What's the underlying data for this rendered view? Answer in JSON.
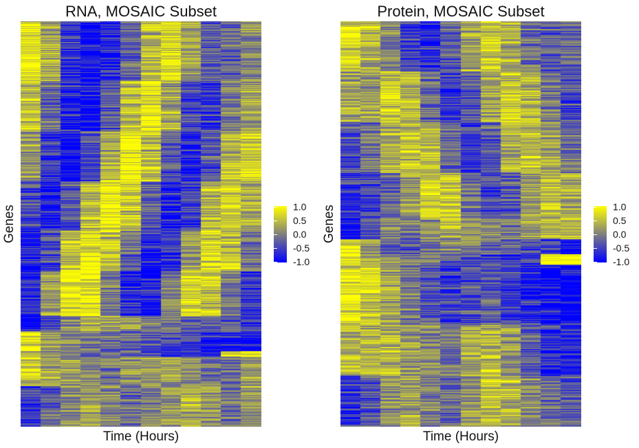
{
  "panels": [
    {
      "title": "RNA, MOSAIC Subset",
      "xlabel": "Time (Hours)",
      "ylabel": "Genes"
    },
    {
      "title": "Protein, MOSAIC Subset",
      "xlabel": "Time (Hours)",
      "ylabel": "Genes"
    }
  ],
  "legend": {
    "labels": [
      "1.0",
      "0.5",
      "0.0",
      "-0.5",
      "-1.0"
    ],
    "values": [
      1.0,
      0.5,
      0.0,
      -0.5,
      -1.0
    ],
    "colors": {
      "high": "#ffff00",
      "mid": "#7f7f7f",
      "low": "#0000ff"
    }
  },
  "chart_data": [
    {
      "type": "heatmap",
      "title": "RNA, MOSAIC Subset",
      "xlabel": "Time (Hours)",
      "ylabel": "Genes",
      "n_timepoints": 12,
      "color_scale": {
        "min": -1.0,
        "max": 1.0,
        "low": "#0000ff",
        "mid": "#7f7f7f",
        "high": "#ffff00"
      },
      "gene_blocks": [
        {
          "rows": 60,
          "values": [
            0.8,
            0.3,
            -0.6,
            -0.9,
            -0.7,
            -0.2,
            0.4,
            0.7,
            0.2,
            -0.3,
            -0.2,
            0.1
          ]
        },
        {
          "rows": 50,
          "values": [
            0.6,
            -0.2,
            -0.8,
            -0.9,
            -0.3,
            0.5,
            0.8,
            0.3,
            -0.4,
            -0.6,
            0.0,
            0.3
          ]
        },
        {
          "rows": 50,
          "values": [
            0.2,
            -0.6,
            -0.9,
            -0.4,
            0.4,
            0.9,
            0.5,
            -0.3,
            -0.8,
            -0.3,
            0.5,
            0.6
          ]
        },
        {
          "rows": 50,
          "values": [
            -0.4,
            -0.8,
            -0.3,
            0.5,
            0.9,
            0.5,
            -0.3,
            -0.8,
            -0.5,
            0.4,
            0.7,
            0.4
          ]
        },
        {
          "rows": 40,
          "values": [
            -0.8,
            -0.4,
            0.5,
            0.9,
            0.6,
            -0.2,
            -0.8,
            -0.6,
            0.2,
            0.7,
            0.5,
            -0.1
          ]
        },
        {
          "rows": 45,
          "values": [
            -0.7,
            0.2,
            0.8,
            0.8,
            0.0,
            -0.7,
            -0.8,
            0.0,
            0.7,
            0.6,
            -0.1,
            -0.5
          ]
        },
        {
          "rows": 15,
          "values": [
            -1.0,
            -0.4,
            0.1,
            0.3,
            0.3,
            0.2,
            0.1,
            0.0,
            -0.2,
            -0.3,
            -0.4,
            -0.5
          ]
        },
        {
          "rows": 20,
          "values": [
            1.0,
            0.4,
            0.1,
            -0.1,
            -0.2,
            -0.3,
            -0.4,
            -0.5,
            -0.6,
            -0.8,
            -0.9,
            -0.9
          ]
        },
        {
          "rows": 5,
          "values": [
            0.5,
            0.2,
            0.0,
            -0.2,
            -0.3,
            -0.4,
            -0.5,
            -0.6,
            -0.7,
            -0.8,
            1.0,
            1.0
          ]
        },
        {
          "rows": 30,
          "values": [
            0.6,
            0.3,
            0.2,
            0.0,
            -0.1,
            0.1,
            0.2,
            0.3,
            0.1,
            -0.2,
            -0.1,
            0.2
          ]
        },
        {
          "rows": 40,
          "values": [
            -0.5,
            -0.3,
            0.1,
            0.3,
            0.1,
            -0.2,
            0.0,
            0.2,
            0.4,
            0.2,
            -0.1,
            0.3
          ]
        }
      ]
    },
    {
      "type": "heatmap",
      "title": "Protein, MOSAIC Subset",
      "xlabel": "Time (Hours)",
      "ylabel": "Genes",
      "n_timepoints": 12,
      "color_scale": {
        "min": -1.0,
        "max": 1.0,
        "low": "#0000ff",
        "mid": "#7f7f7f",
        "high": "#ffff00"
      },
      "gene_blocks": [
        {
          "rows": 50,
          "values": [
            0.7,
            0.4,
            0.1,
            -0.5,
            -0.7,
            -0.3,
            0.3,
            0.6,
            0.4,
            -0.1,
            -0.3,
            -0.2
          ]
        },
        {
          "rows": 50,
          "values": [
            0.3,
            0.2,
            0.6,
            0.4,
            -0.2,
            -0.6,
            -0.3,
            0.3,
            0.6,
            0.4,
            -0.1,
            -0.4
          ]
        },
        {
          "rows": 50,
          "values": [
            -0.4,
            -0.1,
            0.3,
            0.6,
            0.4,
            -0.2,
            -0.6,
            -0.3,
            0.3,
            0.5,
            0.3,
            -0.1
          ]
        },
        {
          "rows": 45,
          "values": [
            -0.6,
            -0.5,
            -0.2,
            0.2,
            0.6,
            0.5,
            -0.1,
            -0.5,
            -0.3,
            0.3,
            0.5,
            0.3
          ]
        },
        {
          "rows": 20,
          "values": [
            -1.0,
            -0.3,
            0.0,
            -0.1,
            0.1,
            0.3,
            0.2,
            0.0,
            -0.1,
            0.2,
            0.5,
            0.4
          ]
        },
        {
          "rows": 15,
          "values": [
            0.9,
            0.2,
            -0.2,
            -0.3,
            0.0,
            0.1,
            0.0,
            -0.2,
            -0.3,
            -0.4,
            -0.6,
            -1.0
          ]
        },
        {
          "rows": 10,
          "values": [
            0.8,
            0.4,
            0.2,
            0.0,
            -0.2,
            -0.3,
            -0.4,
            -0.5,
            -0.6,
            -0.5,
            0.9,
            1.0
          ]
        },
        {
          "rows": 60,
          "values": [
            0.8,
            0.6,
            0.3,
            0.0,
            -0.3,
            -0.5,
            -0.4,
            -0.3,
            -0.5,
            -0.7,
            -0.9,
            -1.0
          ]
        },
        {
          "rows": 50,
          "values": [
            0.4,
            0.5,
            0.4,
            0.2,
            0.1,
            -0.1,
            0.3,
            0.4,
            0.2,
            -0.3,
            -0.6,
            -0.7
          ]
        },
        {
          "rows": 50,
          "values": [
            -0.6,
            -0.3,
            0.1,
            0.3,
            0.0,
            -0.2,
            0.2,
            0.5,
            0.4,
            0.1,
            -0.2,
            -0.3
          ]
        }
      ]
    }
  ]
}
